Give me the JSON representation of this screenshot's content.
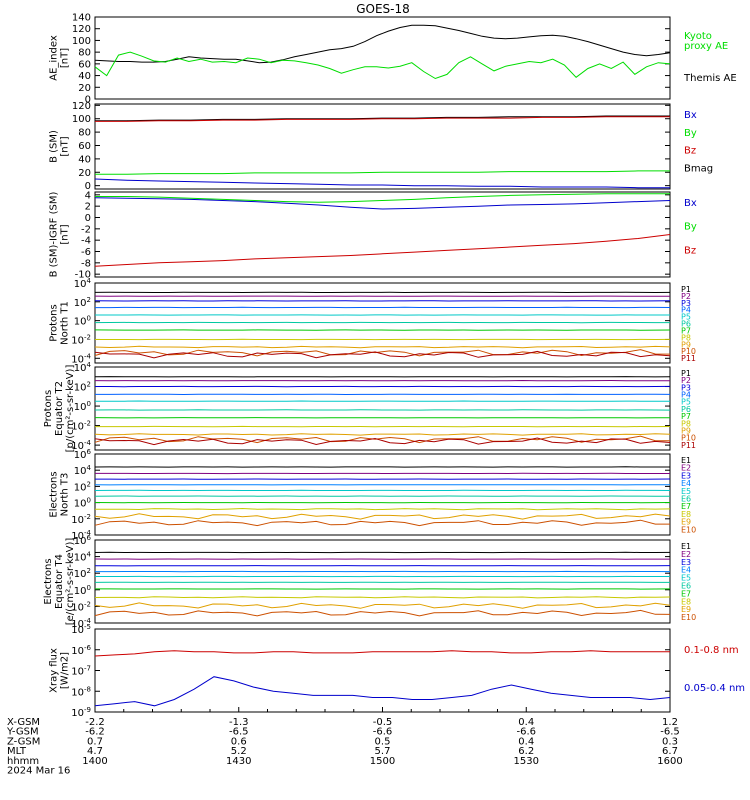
{
  "title": "GOES-18",
  "colors": {
    "black": "#000000",
    "green": "#00dd00",
    "blue": "#0000cc",
    "red": "#cc0000",
    "p": [
      "#000000",
      "#800080",
      "#0000dd",
      "#0060ff",
      "#00c8c8",
      "#00c8a0",
      "#00c800",
      "#c8c800",
      "#e0a000",
      "#cc5000",
      "#aa0000"
    ],
    "e": [
      "#000000",
      "#800080",
      "#0000dd",
      "#0080ff",
      "#00c8c8",
      "#00c8a0",
      "#00c800",
      "#c8c800",
      "#e0a000",
      "#cc5000",
      "#aa0000"
    ]
  },
  "chart_data": [
    {
      "type": "line",
      "ylabel": "AE_index\n[nT]",
      "yticks": [
        "0",
        "20",
        "40",
        "60",
        "80",
        "100",
        "120",
        "140"
      ],
      "ylim": [
        0,
        140
      ],
      "legend": [
        "Kyoto\nproxy AE",
        "Themis AE"
      ],
      "legend_colors": [
        "green",
        "black"
      ],
      "series": [
        {
          "name": "Themis AE",
          "color": "black",
          "values": [
            66,
            65,
            64,
            64,
            63,
            63,
            64,
            68,
            72,
            70,
            69,
            68,
            68,
            65,
            62,
            63,
            67,
            72,
            76,
            80,
            84,
            86,
            90,
            98,
            108,
            116,
            122,
            126,
            126,
            125,
            121,
            117,
            112,
            107,
            104,
            103,
            104,
            106,
            108,
            109,
            107,
            103,
            98,
            92,
            86,
            80,
            76,
            74,
            76,
            79
          ]
        },
        {
          "name": "Kyoto proxy AE",
          "color": "green",
          "values": [
            55,
            40,
            75,
            80,
            73,
            65,
            63,
            70,
            64,
            68,
            63,
            64,
            62,
            70,
            68,
            62,
            66,
            65,
            62,
            58,
            52,
            44,
            50,
            55,
            55,
            53,
            56,
            62,
            47,
            35,
            42,
            62,
            72,
            60,
            48,
            56,
            60,
            64,
            62,
            68,
            58,
            37,
            52,
            60,
            52,
            63,
            42,
            55,
            62,
            60
          ]
        }
      ]
    },
    {
      "type": "line",
      "ylabel": "B (SM)\n[nT]",
      "yticks": [
        "0",
        "20",
        "40",
        "60",
        "80",
        "100",
        "120"
      ],
      "ylim": [
        -5,
        122
      ],
      "legend": [
        "Bx",
        "By",
        "Bz",
        "Bmag"
      ],
      "legend_colors": [
        "blue",
        "green",
        "red",
        "black"
      ],
      "series": [
        {
          "name": "Bmag",
          "color": "black",
          "values": [
            97,
            97,
            98,
            98,
            99,
            99,
            100,
            100,
            100,
            101,
            101,
            102,
            102,
            103,
            103,
            103,
            104,
            104,
            104
          ]
        },
        {
          "name": "Bz",
          "color": "red",
          "values": [
            96,
            96,
            97,
            97,
            98,
            98,
            99,
            99,
            99,
            100,
            100,
            101,
            101,
            101,
            102,
            102,
            103,
            103,
            103
          ]
        },
        {
          "name": "By",
          "color": "green",
          "values": [
            17,
            17,
            18,
            18,
            18,
            19,
            19,
            19,
            19,
            20,
            20,
            20,
            20,
            21,
            21,
            21,
            21,
            22,
            22
          ]
        },
        {
          "name": "Bx",
          "color": "blue",
          "values": [
            10,
            8,
            7,
            6,
            5,
            4,
            3,
            2,
            1,
            1,
            0,
            0,
            -1,
            -1,
            -2,
            -2,
            -2,
            -3,
            -3
          ]
        }
      ]
    },
    {
      "type": "line",
      "ylabel": "B (SM)-IGRF (SM)\n[nT]",
      "yticks": [
        "-10",
        "-8",
        "-6",
        "-4",
        "-2",
        "0",
        "2",
        "4"
      ],
      "ylim": [
        -10.5,
        4.5
      ],
      "legend": [
        "Bx",
        "By",
        "Bz"
      ],
      "legend_colors": [
        "blue",
        "green",
        "red"
      ],
      "series": [
        {
          "name": "Bx",
          "color": "blue",
          "values": [
            3.5,
            3.4,
            3.3,
            3.2,
            3.0,
            2.8,
            2.5,
            2.2,
            1.8,
            1.5,
            1.6,
            1.8,
            2.0,
            2.2,
            2.3,
            2.4,
            2.6,
            2.8,
            3.0
          ]
        },
        {
          "name": "By",
          "color": "green",
          "values": [
            3.7,
            3.7,
            3.6,
            3.4,
            3.2,
            3.0,
            2.8,
            2.7,
            2.8,
            3.0,
            3.2,
            3.5,
            3.7,
            3.9,
            4.0,
            4.1,
            4.2,
            4.2,
            4.2
          ]
        },
        {
          "name": "Bz",
          "color": "red",
          "values": [
            -8.6,
            -8.3,
            -8.0,
            -7.8,
            -7.6,
            -7.3,
            -7.1,
            -6.9,
            -6.7,
            -6.4,
            -6.1,
            -5.8,
            -5.5,
            -5.2,
            -4.9,
            -4.6,
            -4.2,
            -3.7,
            -3.0
          ]
        }
      ]
    },
    {
      "type": "line",
      "log": true,
      "ylabel": "Protons\nNorth T1",
      "ytick_exps": [
        -4,
        -2,
        0,
        2,
        4
      ],
      "ylim_exp": [
        -4.5,
        4
      ],
      "channels": [
        "P1",
        "P2",
        "P3",
        "P4",
        "P5",
        "P6",
        "P7",
        "P8",
        "P9",
        "P10",
        "P11"
      ],
      "levels_exp": [
        3.0,
        2.6,
        2.1,
        1.4,
        0.6,
        -0.2,
        -1.0,
        -2.0,
        -2.8,
        -3.4,
        -3.6
      ]
    },
    {
      "type": "line",
      "log": true,
      "ylabel": "Protons\nEquator T2\n[p/(cm²-s-sr-keV)]",
      "ytick_exps": [
        -4,
        -2,
        0,
        2,
        4
      ],
      "ylim_exp": [
        -4.5,
        4
      ],
      "channels": [
        "P1",
        "P2",
        "P3",
        "P4",
        "P5",
        "P6",
        "P7",
        "P8",
        "P9",
        "P10",
        "P11"
      ],
      "levels_exp": [
        3.0,
        2.6,
        2.0,
        1.2,
        0.5,
        -0.4,
        -1.2,
        -2.1,
        -2.9,
        -3.4,
        -3.6
      ]
    },
    {
      "type": "line",
      "log": true,
      "ylabel": "Electrons\nNorth T3",
      "ytick_exps": [
        -4,
        -2,
        0,
        2,
        4,
        6
      ],
      "ylim_exp": [
        -4,
        6
      ],
      "channels": [
        "E1",
        "E2",
        "E3",
        "E4",
        "E5",
        "E6",
        "E7",
        "E8",
        "E9",
        "E10"
      ],
      "levels_exp": [
        4.4,
        3.6,
        2.9,
        2.2,
        1.5,
        0.8,
        0.0,
        -0.8,
        -1.7,
        -2.5
      ]
    },
    {
      "type": "line",
      "log": true,
      "ylabel": "Electrons\nEquator T4\n[e/(cm²-s-sr-keV)]",
      "ytick_exps": [
        -4,
        -2,
        0,
        2,
        4,
        6
      ],
      "ylim_exp": [
        -4,
        6
      ],
      "channels": [
        "E1",
        "E2",
        "E3",
        "E4",
        "E5",
        "E6",
        "E7",
        "E8",
        "E9",
        "E10"
      ],
      "levels_exp": [
        4.5,
        3.7,
        2.9,
        2.2,
        1.6,
        0.9,
        0.1,
        -0.9,
        -1.9,
        -2.8
      ]
    },
    {
      "type": "line",
      "log": true,
      "ylabel": "Xray flux\n[W/m2]",
      "ytick_exps": [
        -9,
        -8,
        -7,
        -6,
        -5
      ],
      "ylim_exp": [
        -9,
        -5
      ],
      "legend": [
        "0.1-0.8 nm",
        "0.05-0.4 nm"
      ],
      "legend_colors": [
        "red",
        "blue"
      ],
      "series": [
        {
          "name": "0.1-0.8 nm",
          "color": "red",
          "values": [
            -6.3,
            -6.25,
            -6.2,
            -6.1,
            -6.05,
            -6.1,
            -6.1,
            -6.15,
            -6.15,
            -6.1,
            -6.1,
            -6.15,
            -6.15,
            -6.15,
            -6.1,
            -6.1,
            -6.1,
            -6.1,
            -6.05,
            -6.1,
            -6.1,
            -6.15,
            -6.15,
            -6.1,
            -6.1,
            -6.05,
            -6.1,
            -6.1,
            -6.1,
            -6.1
          ]
        },
        {
          "name": "0.05-0.4 nm",
          "color": "blue",
          "values": [
            -8.7,
            -8.6,
            -8.5,
            -8.7,
            -8.4,
            -7.9,
            -7.3,
            -7.5,
            -7.8,
            -8.0,
            -8.1,
            -8.2,
            -8.2,
            -8.2,
            -8.3,
            -8.3,
            -8.4,
            -8.4,
            -8.3,
            -8.2,
            -7.9,
            -7.7,
            -7.9,
            -8.1,
            -8.2,
            -8.3,
            -8.3,
            -8.3,
            -8.4,
            -8.3
          ]
        }
      ]
    }
  ],
  "xaxis": {
    "row_labels": [
      "X-GSM",
      "Y-GSM",
      "Z-GSM",
      "MLT",
      "hhmm",
      "2024 Mar 16"
    ],
    "ticks": [
      {
        "pos": 0.0,
        "vals": [
          "-2.2",
          "-6.2",
          "0.7",
          "4.7",
          "1400"
        ]
      },
      {
        "pos": 0.25,
        "vals": [
          "-1.3",
          "-6.5",
          "0.6",
          "5.2",
          "1430"
        ]
      },
      {
        "pos": 0.5,
        "vals": [
          "-0.5",
          "-6.6",
          "0.5",
          "5.7",
          "1500"
        ]
      },
      {
        "pos": 0.75,
        "vals": [
          "0.4",
          "-6.6",
          "0.4",
          "6.2",
          "1530"
        ]
      },
      {
        "pos": 1.0,
        "vals": [
          "1.2",
          "-6.5",
          "0.3",
          "6.7",
          "1600"
        ]
      }
    ]
  }
}
